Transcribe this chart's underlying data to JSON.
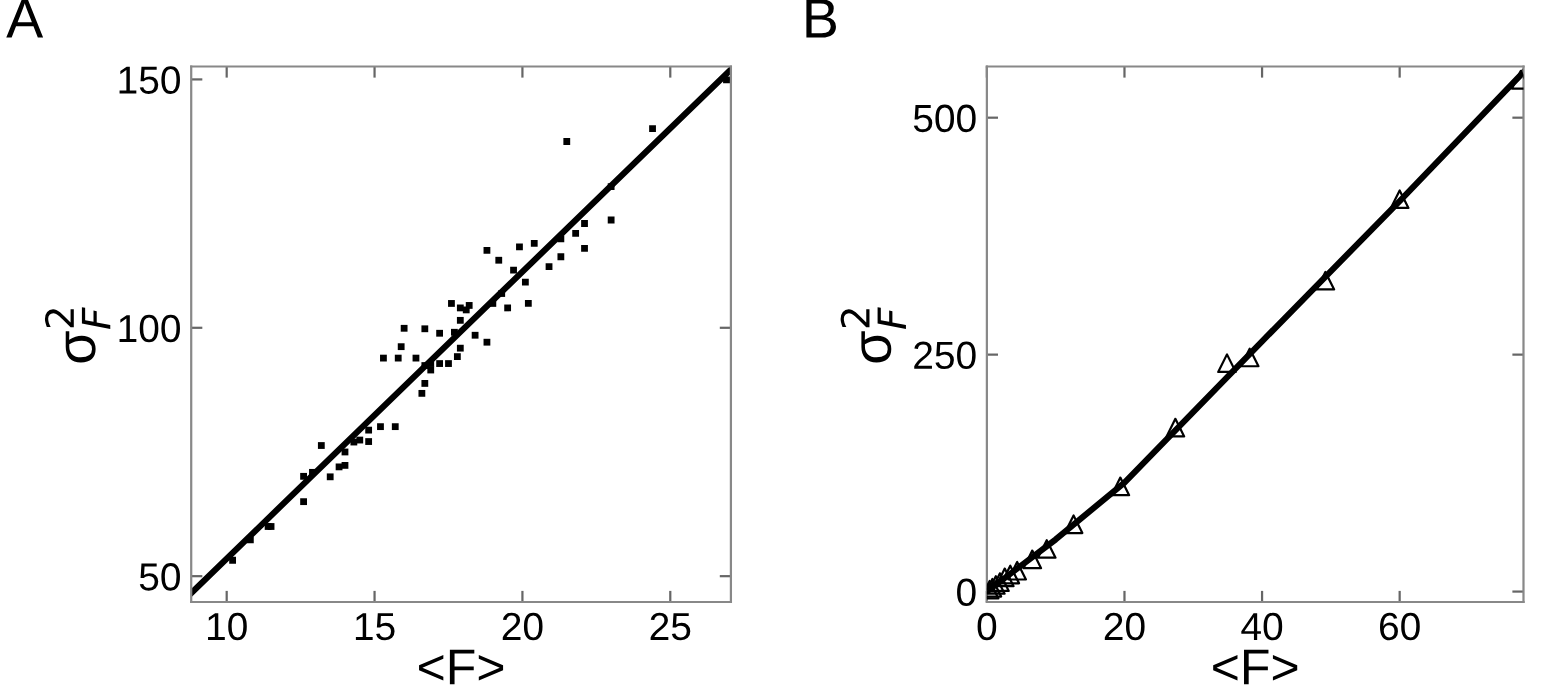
{
  "chart_data": [
    {
      "type": "scatter",
      "title": "A",
      "xlabel": "<F>",
      "ylabel": "σ$^{2}$$_{F}$",
      "xlim": [
        8.8,
        27.05
      ],
      "ylim": [
        44.8,
        152.6
      ],
      "xticks": [
        10,
        15,
        20,
        25
      ],
      "yticks": [
        50,
        100,
        150
      ],
      "grid": false,
      "legend": false,
      "series": [
        {
          "marker": "square",
          "color": "#000000",
          "x": [
            10.2,
            10.8,
            11.4,
            11.5,
            12.6,
            12.6,
            12.9,
            13.2,
            13.5,
            13.8,
            14.0,
            14.0,
            14.3,
            14.5,
            14.8,
            14.8,
            15.2,
            15.7,
            15.3,
            15.8,
            15.9,
            16.0,
            16.4,
            16.6,
            16.7,
            16.7,
            16.7,
            16.9,
            16.9,
            17.2,
            17.2,
            17.5,
            17.6,
            17.7,
            17.9,
            17.9,
            18.1,
            18.2,
            17.9,
            17.8,
            18.4,
            18.8,
            18.8,
            19.0,
            19.2,
            19.3,
            19.5,
            19.7,
            19.9,
            20.1,
            20.2,
            20.4,
            20.9,
            21.3,
            21.3,
            21.5,
            21.8,
            22.1,
            22.1,
            23.0,
            23.0,
            24.4,
            26.9
          ],
          "values": [
            53.2,
            57.3,
            60,
            60,
            65,
            70.1,
            70.9,
            76.3,
            70,
            72,
            72.3,
            75,
            77,
            77.4,
            77.1,
            79.4,
            80.1,
            80.1,
            93.9,
            93.9,
            96.2,
            99.9,
            93.9,
            86.8,
            92.4,
            99.8,
            88.8,
            91.5,
            92.8,
            92.8,
            98.9,
            92.8,
            104.9,
            99.1,
            101.5,
            104,
            103.6,
            104.5,
            95.9,
            94.2,
            98.5,
            97.1,
            115.6,
            104.9,
            113.6,
            106.9,
            104,
            111.6,
            116.3,
            109.2,
            104.9,
            117,
            112.3,
            117.9,
            114.3,
            137.5,
            119,
            116,
            121,
            128.4,
            121.7,
            140.1,
            149.9
          ]
        },
        {
          "type": "line",
          "marker": "none",
          "line_style": "solid",
          "color": "#000000",
          "x": [
            8.8,
            27.05
          ],
          "values": [
            46.6,
            152.0
          ]
        }
      ]
    },
    {
      "type": "scatter",
      "title": "B",
      "xlabel": "<F>",
      "ylabel": "σ$^{2}$$_{F}$",
      "xlim": [
        0,
        78
      ],
      "ylim": [
        -11,
        554
      ],
      "xticks": [
        0,
        20,
        40,
        60
      ],
      "yticks": [
        0,
        250,
        500
      ],
      "grid": false,
      "legend": false,
      "series": [
        {
          "marker": "triangle",
          "color": "#000000",
          "x": [
            0.4,
            0.8,
            1.3,
            1.9,
            2.6,
            3.4,
            4.4,
            6.6,
            8.7,
            12.6,
            19.4,
            27.4,
            34.9,
            38.2,
            49.2,
            60,
            77.6
          ],
          "values": [
            2,
            4,
            7,
            10,
            15,
            18,
            22,
            34,
            45,
            71,
            111,
            173,
            241,
            247,
            328,
            414,
            540
          ]
        },
        {
          "type": "line",
          "marker": "none",
          "line_style": "solid",
          "color": "#000000",
          "x": [
            0,
            10,
            20,
            40,
            60,
            78
          ],
          "values": [
            0,
            55,
            115,
            264,
            412,
            548
          ]
        }
      ]
    }
  ]
}
